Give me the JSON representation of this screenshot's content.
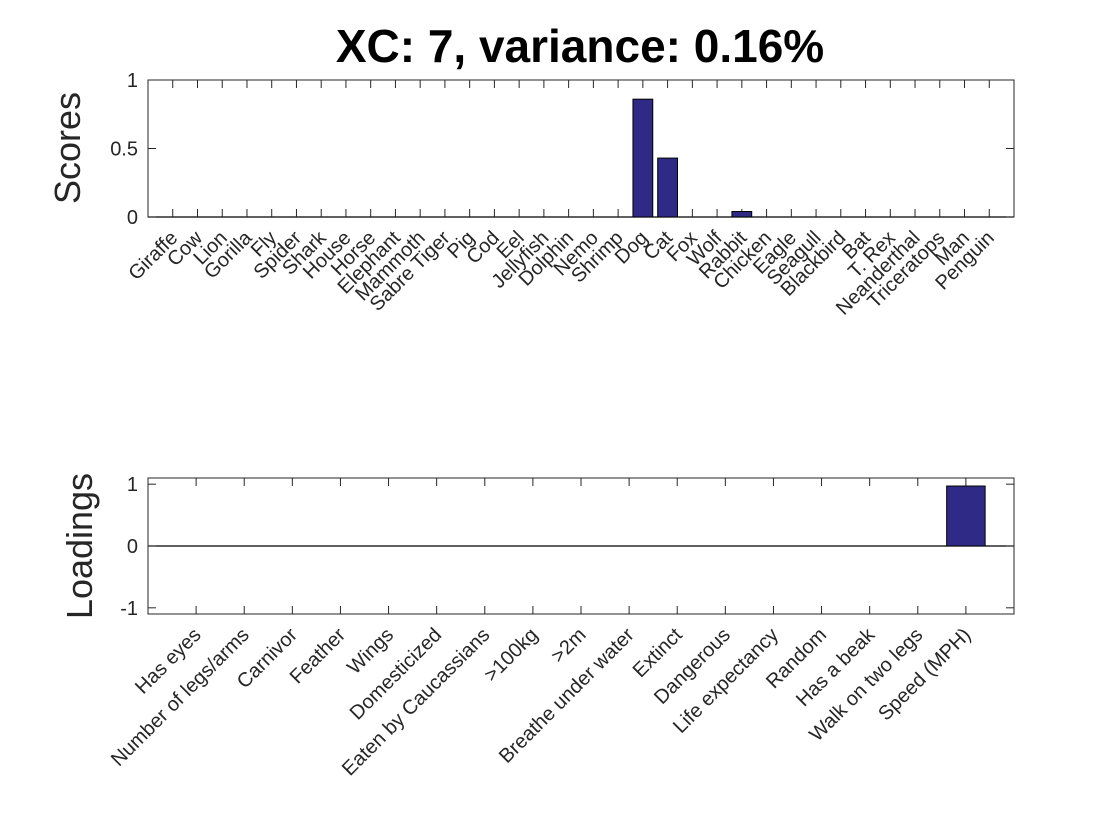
{
  "title": "XC: 7, variance: 0.16%",
  "colors": {
    "bar": "#2e2a86",
    "axis": "#262626",
    "background": "#ffffff"
  },
  "chart_data": [
    {
      "type": "bar",
      "ylabel": "Scores",
      "ylim": [
        0,
        1
      ],
      "yticks": [
        0,
        0.5,
        1
      ],
      "ytick_labels": [
        "0",
        "0.5",
        "1"
      ],
      "categories": [
        "Giraffe",
        "Cow",
        "Lion",
        "Gorilla",
        "Fly",
        "Spider",
        "Shark",
        "House",
        "Horse",
        "Elephant",
        "Mammoth",
        "Sabre Tiger",
        "Pig",
        "Cod",
        "Eel",
        "Jellyfish",
        "Dolphin",
        "Nemo",
        "Shrimp",
        "Dog",
        "Cat",
        "Fox",
        "Wolf",
        "Rabbit",
        "Chicken",
        "Eagle",
        "Seagull",
        "Blackbird",
        "Bat",
        "T. Rex",
        "Neanderthal",
        "Triceratops",
        "Man",
        "Penguin"
      ],
      "values": [
        0,
        0,
        0,
        0,
        0,
        0,
        0,
        0,
        0,
        0,
        0,
        0,
        0,
        0,
        0,
        0,
        0,
        0,
        0,
        0.86,
        0.43,
        0,
        0,
        0.04,
        0,
        0,
        0,
        0,
        0,
        0,
        0,
        0,
        0,
        0
      ]
    },
    {
      "type": "bar",
      "ylabel": "Loadings",
      "ylim": [
        -1.1,
        1.1
      ],
      "yticks": [
        -1,
        0,
        1
      ],
      "ytick_labels": [
        "-1",
        "0",
        "1"
      ],
      "categories": [
        "Has eyes",
        "Number of legs/arms",
        "Carnivor",
        "Feather",
        "Wings",
        "Domesticized",
        "Eaten by Caucassians",
        ">100kg",
        ">2m",
        "Breathe under water",
        "Extinct",
        "Dangerous",
        "Life expectancy",
        "Random",
        "Has a beak",
        "Walk on two legs",
        "Speed (MPH)"
      ],
      "values": [
        0,
        0,
        0,
        0,
        0,
        0,
        0,
        0,
        0,
        0,
        0,
        0,
        0,
        0,
        0,
        0,
        0.97
      ]
    }
  ]
}
